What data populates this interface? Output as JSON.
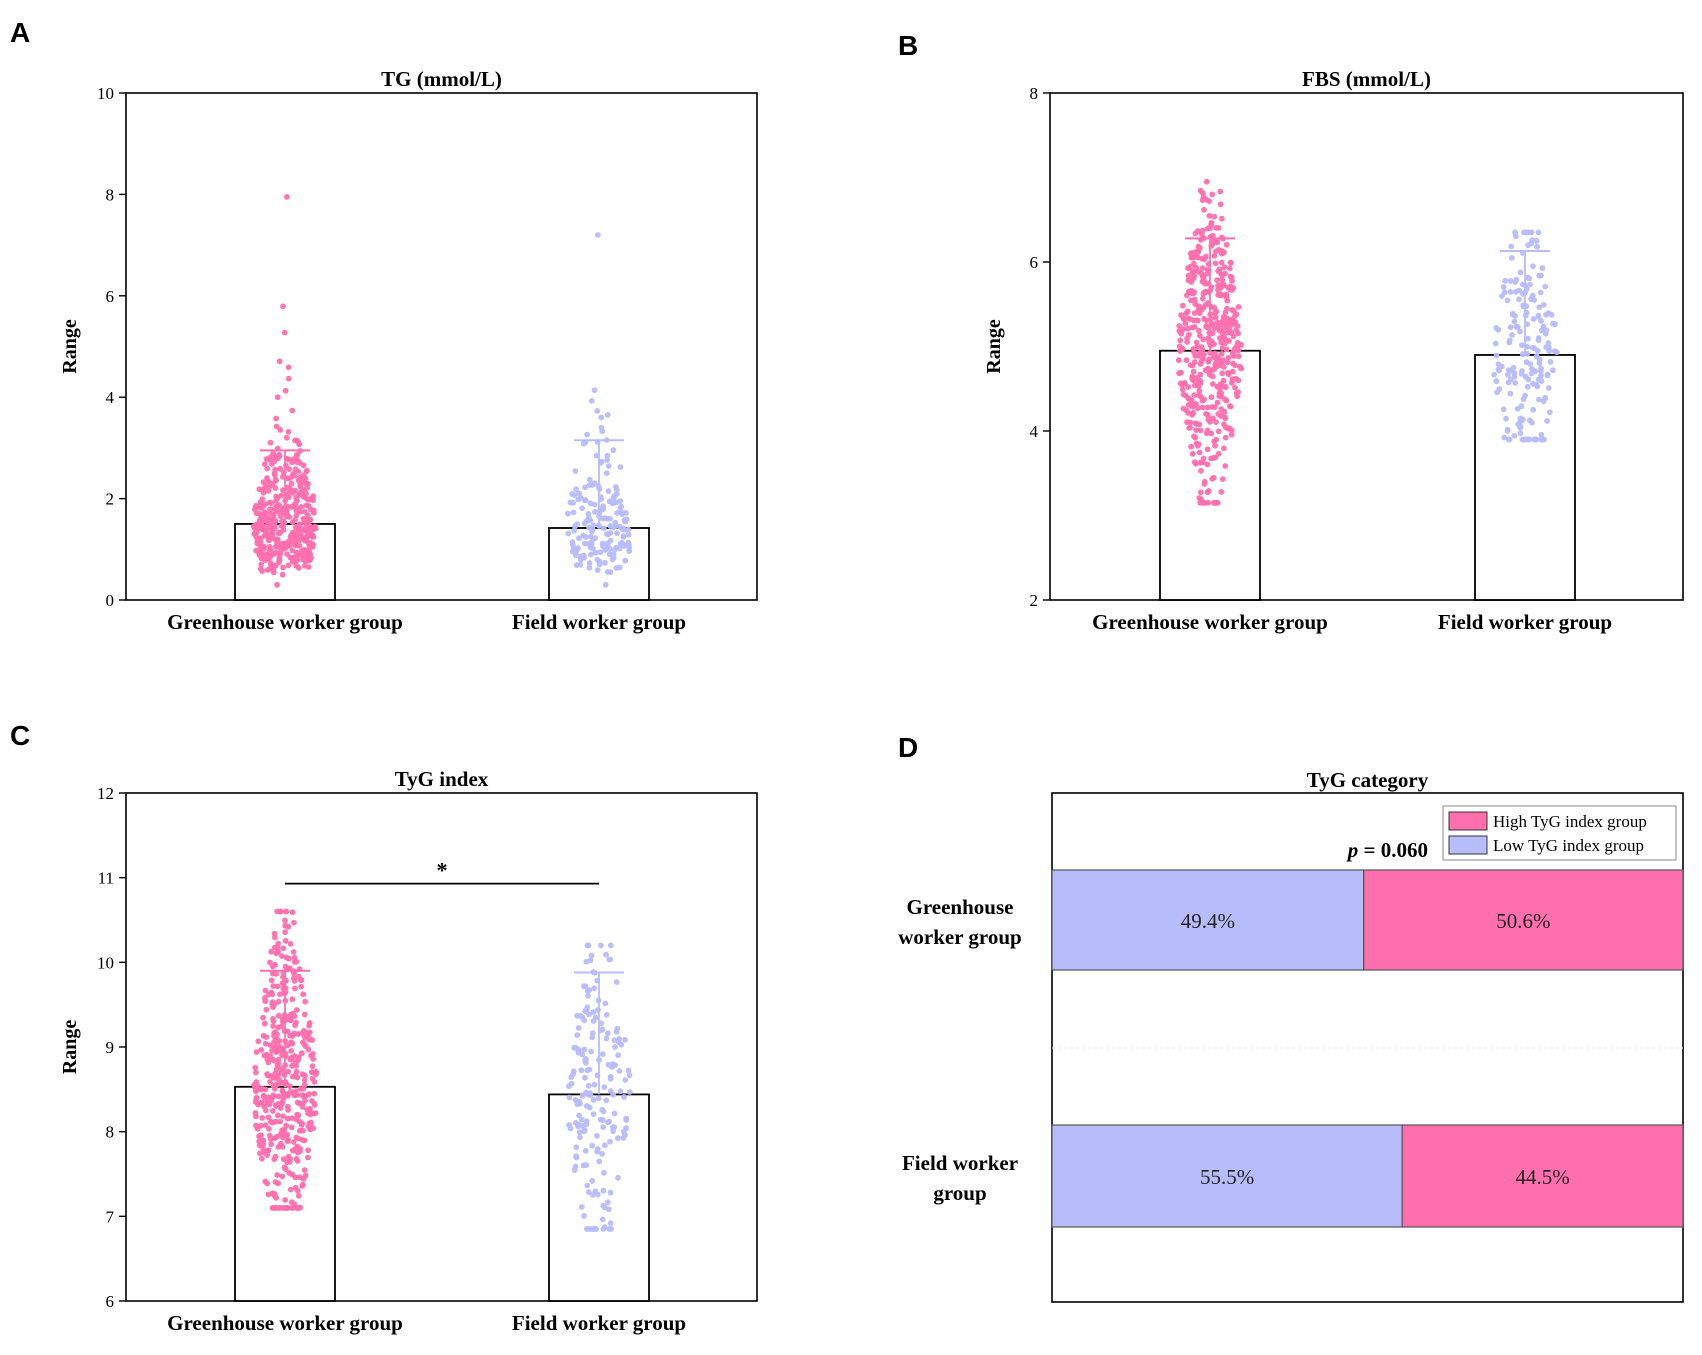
{
  "colors": {
    "pink": "#ff6fae",
    "blue": "#b7bdfa",
    "bar_fill": "#ffffff",
    "axis": "#000000"
  },
  "chart_data": [
    {
      "panel": "A",
      "type": "bar",
      "title": "TG (mmol/L)",
      "ylabel": "Range",
      "xlabel": "",
      "ylim": [
        0,
        10
      ],
      "yticks": [
        0,
        2,
        4,
        6,
        8,
        10
      ],
      "categories": [
        "Greenhouse worker group",
        "Field worker group"
      ],
      "values": [
        1.5,
        1.42
      ],
      "error_upper": [
        2.95,
        3.15
      ],
      "point_ranges": [
        [
          0.3,
          7.95
        ],
        [
          0.3,
          7.2
        ]
      ],
      "point_colors": [
        "pink",
        "blue"
      ],
      "annotations": []
    },
    {
      "panel": "B",
      "type": "bar",
      "title": "FBS (mmol/L)",
      "ylabel": "Range",
      "xlabel": "",
      "ylim": [
        2,
        8
      ],
      "yticks": [
        2,
        4,
        6,
        8
      ],
      "categories": [
        "Greenhouse worker group",
        "Field worker group"
      ],
      "values": [
        4.95,
        4.9
      ],
      "error_upper": [
        6.28,
        6.13
      ],
      "point_ranges": [
        [
          3.15,
          6.95
        ],
        [
          3.9,
          6.35
        ]
      ],
      "point_colors": [
        "pink",
        "blue"
      ],
      "annotations": []
    },
    {
      "panel": "C",
      "type": "bar",
      "title": "TyG index",
      "ylabel": "Range",
      "xlabel": "",
      "ylim": [
        6,
        12
      ],
      "yticks": [
        6,
        7,
        8,
        9,
        10,
        11,
        12
      ],
      "categories": [
        "Greenhouse worker group",
        "Field worker group"
      ],
      "values": [
        8.53,
        8.44
      ],
      "error_upper": [
        9.9,
        9.88
      ],
      "point_ranges": [
        [
          7.1,
          10.6
        ],
        [
          6.85,
          10.2
        ]
      ],
      "point_colors": [
        "pink",
        "blue"
      ],
      "annotations": [
        "*"
      ],
      "significance_y": 10.93
    },
    {
      "panel": "D",
      "type": "bar",
      "orientation": "horizontal-stacked",
      "title": "TyG category",
      "categories": [
        "Greenhouse worker group",
        "Field worker group"
      ],
      "category_lines": [
        [
          "Greenhouse",
          "worker group"
        ],
        [
          "Field worker",
          "group"
        ]
      ],
      "series": [
        {
          "name": "Low TyG index group",
          "color": "blue",
          "values": [
            49.4,
            55.5
          ],
          "labels": [
            "49.4%",
            "55.5%"
          ]
        },
        {
          "name": "High TyG index group",
          "color": "pink",
          "values": [
            50.6,
            44.5
          ],
          "labels": [
            "50.6%",
            "44.5%"
          ]
        }
      ],
      "legend_order": [
        "High TyG index group",
        "Low TyG index group"
      ],
      "xlim": [
        0,
        100
      ],
      "annotations": [
        "p = 0.060"
      ],
      "p_symbol": "p",
      "p_value": " = 0.060"
    }
  ]
}
